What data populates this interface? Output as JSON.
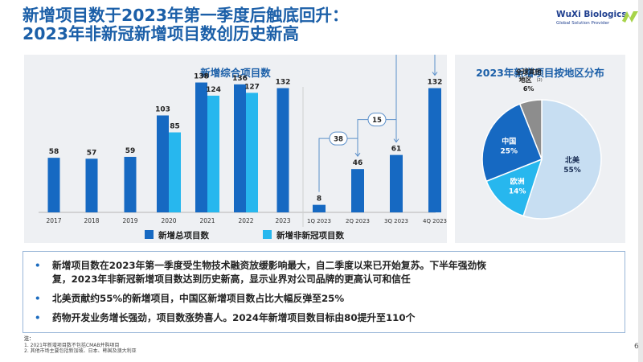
{
  "title": {
    "line1": "新增项目数于2023年第一季度后触底回升：",
    "line2": "2023年非新冠新增项目数创历史新高"
  },
  "logo": {
    "name": "WuXi Biologics",
    "tagline": "Global Solution Provider"
  },
  "colors": {
    "dark_blue": "#1669c2",
    "light_blue": "#27b7ee",
    "navy": "#1f4a9a",
    "pie_light": "#c7def2",
    "pie_gray": "#8d8d8d"
  },
  "chart_data": [
    {
      "type": "bar",
      "title": "新增综合项目数",
      "categories": [
        "2017",
        "2018",
        "2019",
        "2020",
        "2021",
        "2022",
        "2023"
      ],
      "series": [
        {
          "name": "新增总项目数",
          "values": [
            58,
            57,
            59,
            103,
            138,
            136,
            132
          ],
          "labels": [
            "58",
            "57",
            "59",
            "103",
            "138",
            "136",
            "132"
          ]
        },
        {
          "name": "新增非新冠项目数",
          "values": [
            null,
            null,
            null,
            85,
            124,
            127,
            null
          ],
          "labels": [
            "",
            "",
            "",
            "85",
            "124",
            "127",
            ""
          ]
        }
      ],
      "annotations": [
        {
          "category": "2021",
          "text": "(1)"
        }
      ]
    },
    {
      "type": "bar",
      "categories": [
        "1Q 2023",
        "2Q 2023",
        "3Q 2023",
        "4Q 2023"
      ],
      "values": [
        8,
        46,
        61,
        132
      ],
      "labels": [
        "8",
        "46",
        "61",
        "132"
      ],
      "cumulative_callouts": [
        "38",
        "15",
        "71"
      ]
    },
    {
      "type": "pie",
      "title": "2023年新增项目按地区分布",
      "slices": [
        {
          "label": "北美",
          "value": 55,
          "text": "55%",
          "color": "#c7def2"
        },
        {
          "label": "欧洲",
          "value": 14,
          "text": "14%",
          "color": "#27b7ee"
        },
        {
          "label": "中国",
          "value": 25,
          "text": "25%",
          "color": "#1669c2"
        },
        {
          "label": "全球其他地区",
          "value": 6,
          "text": "6%",
          "color": "#8d8d8d",
          "label_line1": "全球其他",
          "label_line2": "地区",
          "note_ref": "(2)"
        }
      ]
    }
  ],
  "legend": {
    "total": "新增总项目数",
    "non_covid": "新增非新冠项目数"
  },
  "bullets": [
    {
      "line1": "新增项目数在2023年第一季度受生物技术融资放缓影响最大，自二季度以来已开始复苏。下半年强劲恢",
      "line2": "复，2023年非新冠新增项目数达到历史新高，显示业界对公司品牌的更高认可和信任"
    },
    {
      "line1": "北美贡献约55%的新增项目，中国区新增项目数占比大幅反弹至25%"
    },
    {
      "line1": "药物开发业务增长强劲，项目数涨势喜人。2024年新增项目数目标由80提升至110个"
    }
  ],
  "notes": {
    "heading": "注：",
    "items": [
      "1. 2021年新增项目数不包括CMAB并购项目",
      "2. 其他市场主要包括新加坡、日本、韩国及澳大利亚"
    ]
  },
  "page_number": "6",
  "bullet_glyph": "•"
}
